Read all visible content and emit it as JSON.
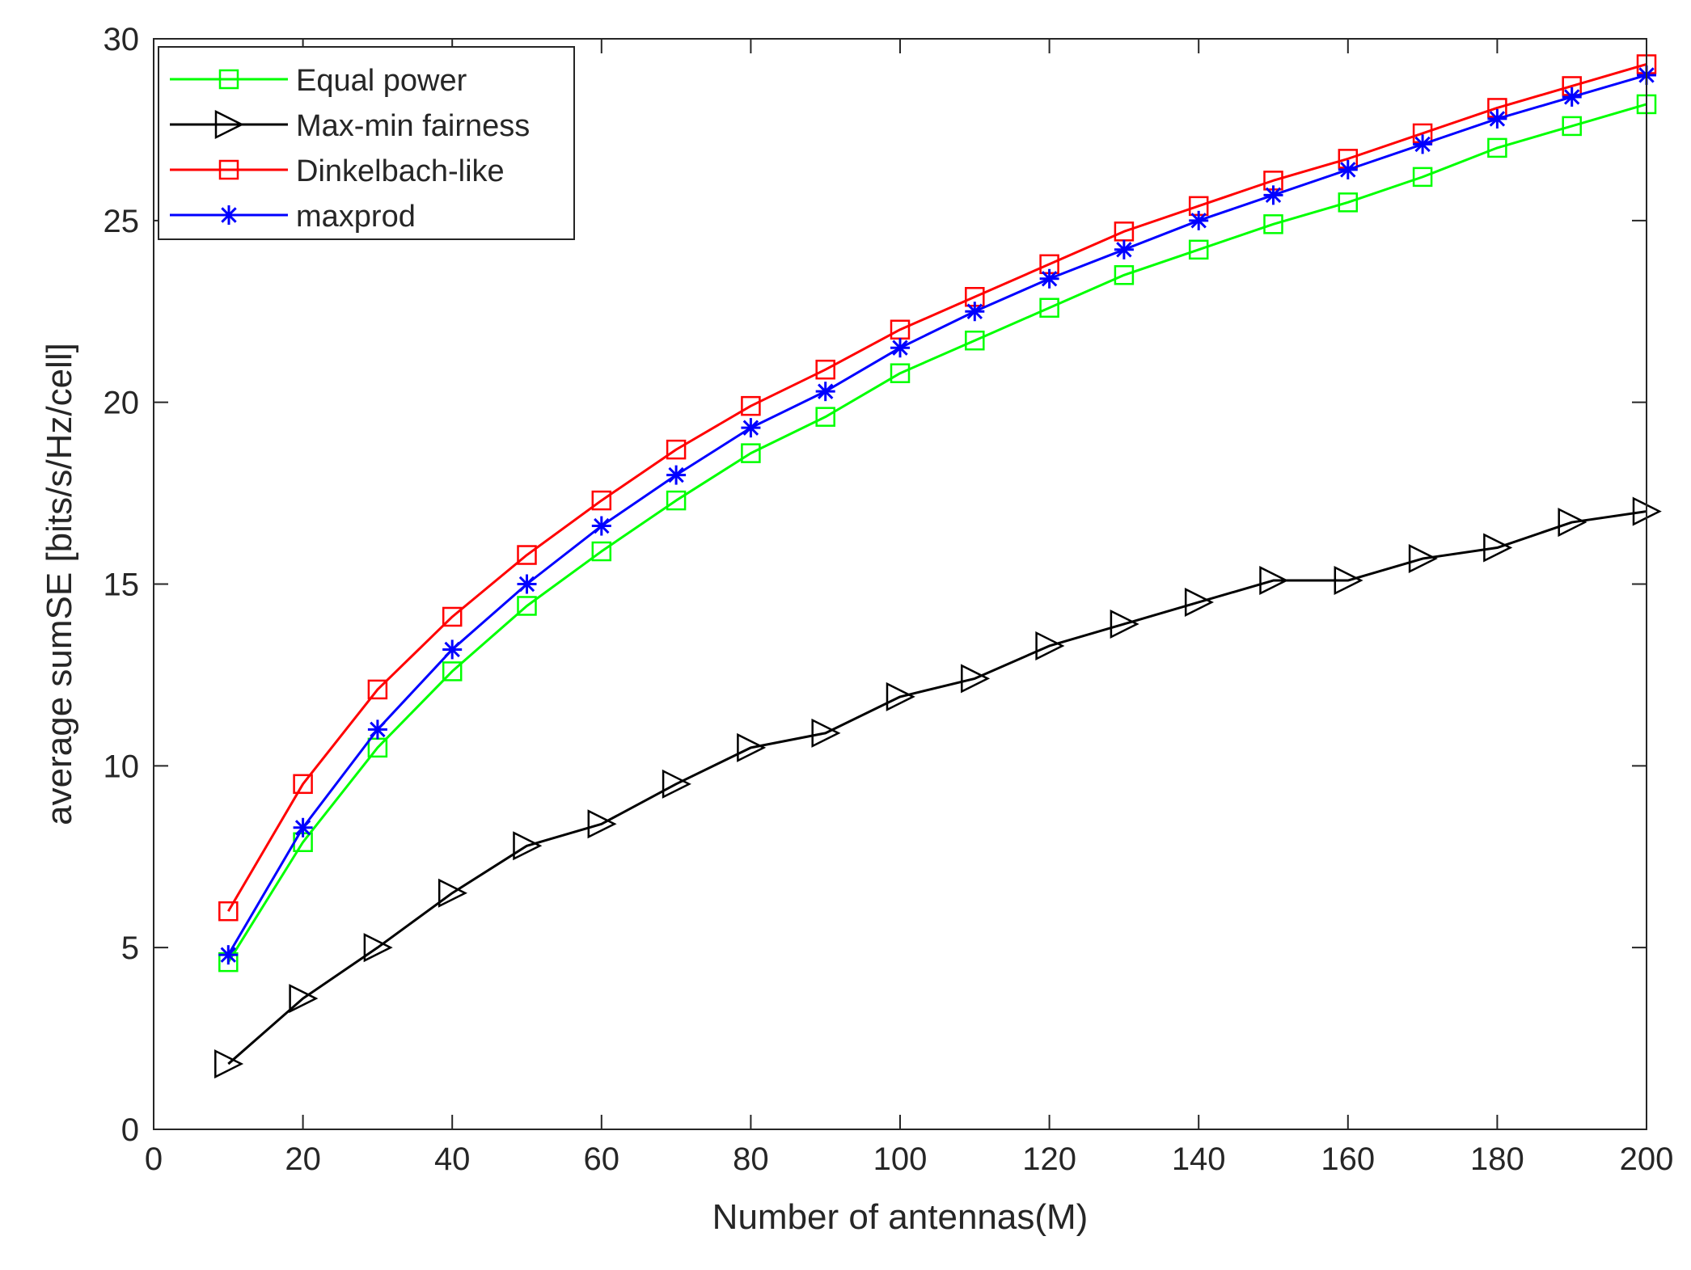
{
  "chart_data": {
    "type": "line",
    "title": "",
    "xlabel": "Number of antennas(M)",
    "ylabel": "average sumSE [bits/s/Hz/cell]",
    "xlim": [
      0,
      200
    ],
    "ylim": [
      0,
      30
    ],
    "xticks": [
      0,
      20,
      40,
      60,
      80,
      100,
      120,
      140,
      160,
      180,
      200
    ],
    "yticks": [
      0,
      5,
      10,
      15,
      20,
      25,
      30
    ],
    "grid": false,
    "legend_position": "top-left",
    "x": [
      10,
      20,
      30,
      40,
      50,
      60,
      70,
      80,
      90,
      100,
      110,
      120,
      130,
      140,
      150,
      160,
      170,
      180,
      190,
      200
    ],
    "series": [
      {
        "name": "Equal power",
        "color": "#00ff00",
        "marker": "square",
        "values": [
          4.6,
          7.9,
          10.5,
          12.6,
          14.4,
          15.9,
          17.3,
          18.6,
          19.6,
          20.8,
          21.7,
          22.6,
          23.5,
          24.2,
          24.9,
          25.5,
          26.2,
          27.0,
          27.6,
          28.2
        ]
      },
      {
        "name": "Max-min fairness",
        "color": "#000000",
        "marker": "triangle-right",
        "values": [
          1.8,
          3.6,
          5.0,
          6.5,
          7.8,
          8.4,
          9.5,
          10.5,
          10.9,
          11.9,
          12.4,
          13.3,
          13.9,
          14.5,
          15.1,
          15.1,
          15.7,
          16.0,
          16.7,
          17.0
        ]
      },
      {
        "name": "Dinkelbach-like",
        "color": "#ff0000",
        "marker": "square",
        "values": [
          6.0,
          9.5,
          12.1,
          14.1,
          15.8,
          17.3,
          18.7,
          19.9,
          20.9,
          22.0,
          22.9,
          23.8,
          24.7,
          25.4,
          26.1,
          26.7,
          27.4,
          28.1,
          28.7,
          29.3
        ]
      },
      {
        "name": "maxprod",
        "color": "#0000ff",
        "marker": "asterisk",
        "values": [
          4.8,
          8.3,
          11.0,
          13.2,
          15.0,
          16.6,
          18.0,
          19.3,
          20.3,
          21.5,
          22.5,
          23.4,
          24.2,
          25.0,
          25.7,
          26.4,
          27.1,
          27.8,
          28.4,
          29.0
        ]
      }
    ]
  }
}
